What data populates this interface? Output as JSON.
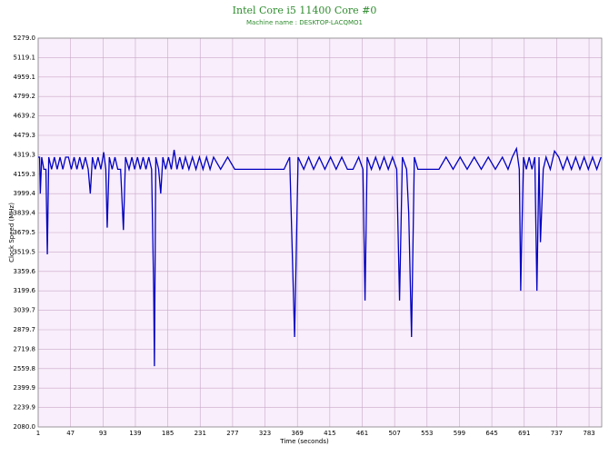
{
  "chart_data": {
    "type": "line",
    "title": "Intel Core i5 11400 Core #0",
    "subtitle": "Machine name : DESKTOP-LACQMO1",
    "x_label": "Time (seconds)",
    "y_label": "Clock Speed (MHz)",
    "color": "#0000c0",
    "grid": true,
    "xlim": [
      1,
      801
    ],
    "xticks": [
      1,
      47,
      93,
      139,
      185,
      231,
      277,
      323,
      369,
      415,
      461,
      507,
      553,
      599,
      645,
      691,
      737,
      783
    ],
    "ylim": [
      2080,
      5279
    ],
    "yticks": [
      {
        "value": 2080,
        "label": "2080.0"
      },
      2239.9,
      2399.9,
      2559.8,
      2719.8,
      2879.7,
      3039.7,
      3199.6,
      3359.6,
      3519.5,
      3679.5,
      3839.4,
      3999.4,
      4159.3,
      4319.3,
      4479.3,
      4639.2,
      4799.2,
      4959.1,
      5119.1,
      {
        "value": 5279,
        "label": "5279.0"
      }
    ],
    "x": [
      1,
      3,
      4,
      6,
      9,
      12,
      14,
      16,
      20,
      24,
      28,
      32,
      36,
      40,
      44,
      48,
      52,
      56,
      60,
      64,
      68,
      72,
      75,
      78,
      82,
      86,
      90,
      94,
      97,
      99,
      102,
      106,
      110,
      114,
      118,
      122,
      125,
      130,
      134,
      138,
      142,
      146,
      150,
      154,
      158,
      162,
      165,
      166,
      168,
      172,
      175,
      178,
      182,
      186,
      190,
      194,
      198,
      202,
      206,
      210,
      215,
      220,
      225,
      230,
      235,
      240,
      245,
      250,
      260,
      270,
      280,
      290,
      300,
      310,
      320,
      330,
      340,
      350,
      358,
      365,
      370,
      378,
      385,
      392,
      400,
      408,
      416,
      424,
      432,
      440,
      448,
      456,
      462,
      465,
      468,
      474,
      480,
      486,
      492,
      498,
      504,
      510,
      514,
      518,
      524,
      527,
      531,
      535,
      540,
      546,
      552,
      558,
      564,
      570,
      580,
      590,
      600,
      610,
      620,
      630,
      640,
      650,
      660,
      668,
      674,
      680,
      684,
      686,
      687,
      690,
      694,
      698,
      702,
      706,
      709,
      712,
      714,
      718,
      722,
      728,
      734,
      740,
      746,
      752,
      758,
      764,
      770,
      776,
      782,
      788,
      794,
      800
    ],
    "values": [
      4300,
      4300,
      4000,
      4300,
      4200,
      4200,
      3500,
      4300,
      4200,
      4300,
      4200,
      4300,
      4200,
      4300,
      4300,
      4200,
      4300,
      4200,
      4300,
      4200,
      4300,
      4200,
      4000,
      4300,
      4200,
      4300,
      4200,
      4340,
      4200,
      3720,
      4300,
      4200,
      4300,
      4200,
      4200,
      3700,
      4300,
      4200,
      4300,
      4200,
      4300,
      4200,
      4300,
      4200,
      4300,
      4200,
      3200,
      2580,
      4300,
      4200,
      4000,
      4300,
      4200,
      4300,
      4200,
      4360,
      4200,
      4300,
      4200,
      4300,
      4200,
      4300,
      4200,
      4300,
      4200,
      4300,
      4200,
      4300,
      4200,
      4300,
      4200,
      4200,
      4200,
      4200,
      4200,
      4200,
      4200,
      4200,
      4300,
      2820,
      4300,
      4200,
      4300,
      4200,
      4300,
      4200,
      4300,
      4200,
      4300,
      4200,
      4200,
      4300,
      4200,
      3120,
      4300,
      4200,
      4300,
      4200,
      4300,
      4200,
      4300,
      4200,
      3120,
      4300,
      4200,
      3840,
      2820,
      4300,
      4200,
      4200,
      4200,
      4200,
      4200,
      4200,
      4300,
      4200,
      4300,
      4200,
      4300,
      4200,
      4300,
      4200,
      4300,
      4200,
      4300,
      4370,
      4200,
      3200,
      3520,
      4300,
      4200,
      4300,
      4200,
      4300,
      3200,
      4300,
      3600,
      4200,
      4300,
      4200,
      4350,
      4300,
      4200,
      4300,
      4200,
      4300,
      4200,
      4300,
      4200,
      4300,
      4200,
      4300
    ]
  }
}
